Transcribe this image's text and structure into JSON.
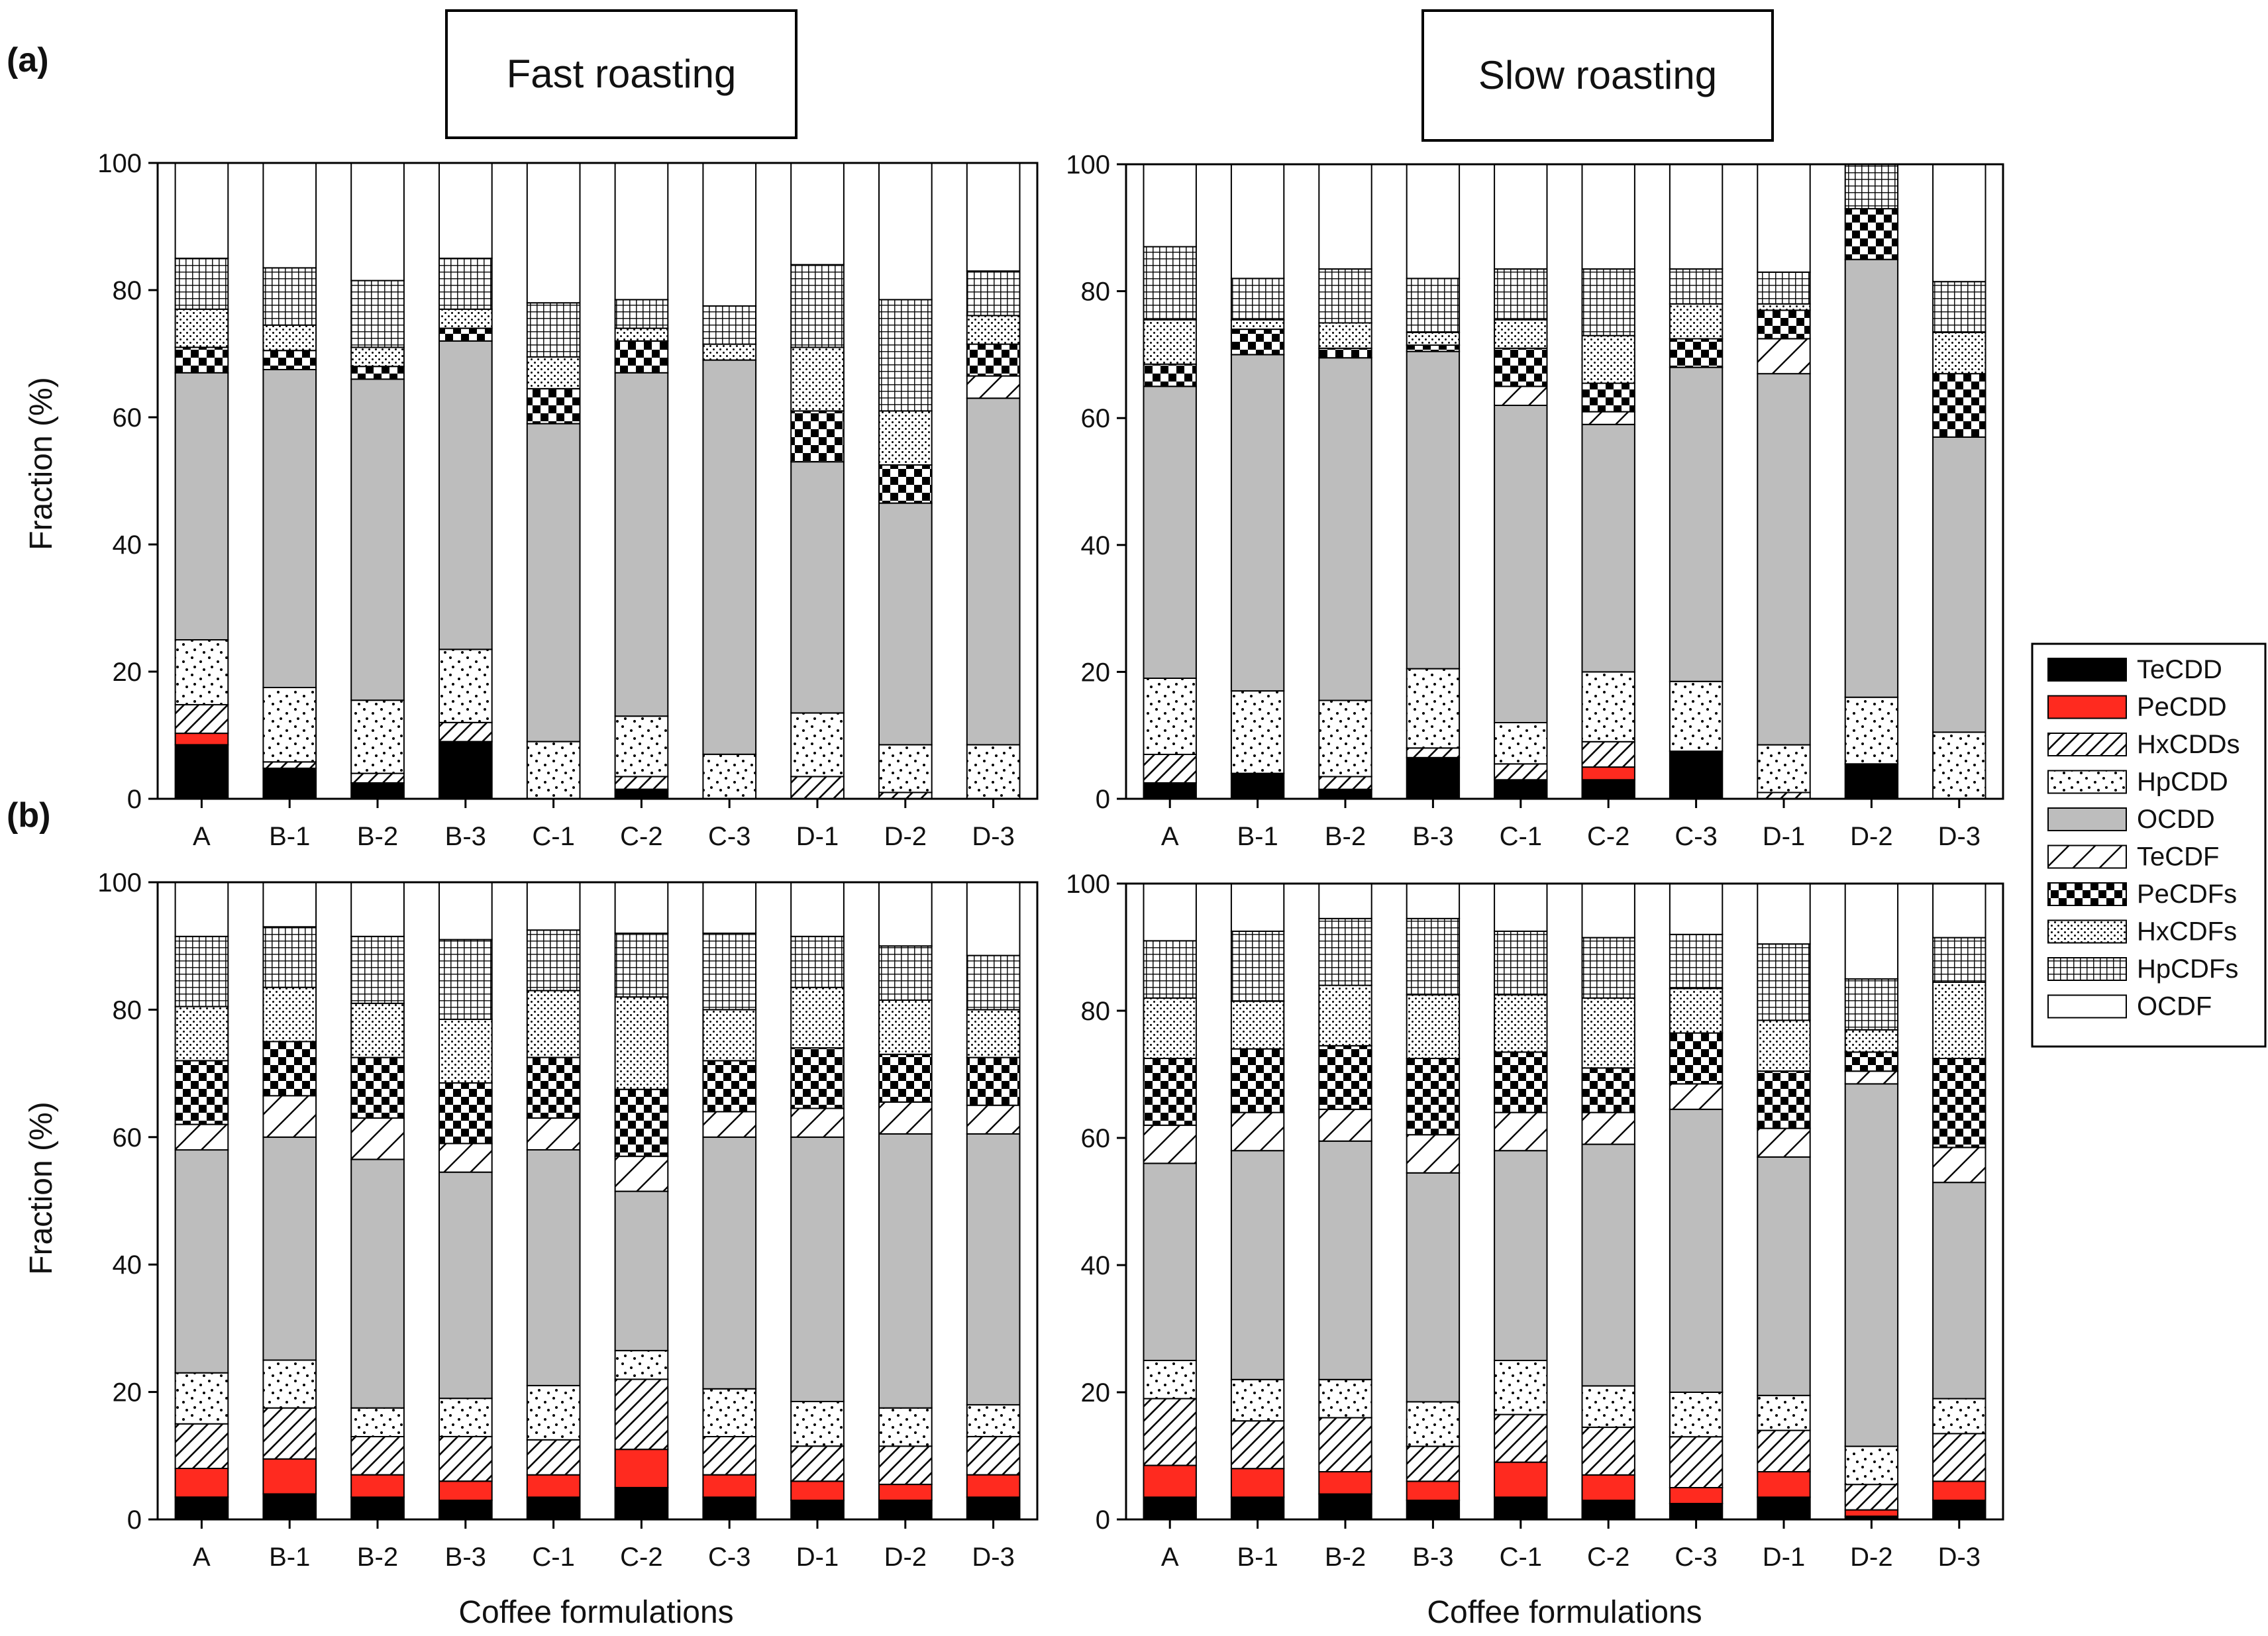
{
  "panel_labels": [
    "(a)",
    "(b)"
  ],
  "column_titles": [
    "Fast roasting",
    "Slow roasting"
  ],
  "ylabel": "Fraction (%)",
  "xlabel": "Coffee formulations",
  "y_ticks": [
    "0",
    "20",
    "40",
    "60",
    "80",
    "100"
  ],
  "legend": [
    {
      "name": "TeCDD",
      "fill": "solid-black"
    },
    {
      "name": "PeCDD",
      "fill": "solid-red"
    },
    {
      "name": "HxCDDs",
      "fill": "dense-diagonal"
    },
    {
      "name": "HpCDD",
      "fill": "sparse-dots"
    },
    {
      "name": "OCDD",
      "fill": "solid-gray"
    },
    {
      "name": "TeCDF",
      "fill": "sparse-diagonal"
    },
    {
      "name": "PeCDFs",
      "fill": "checker"
    },
    {
      "name": "HxCDFs",
      "fill": "fine-dots"
    },
    {
      "name": "HpCDFs",
      "fill": "grid"
    },
    {
      "name": "OCDF",
      "fill": "solid-white"
    }
  ],
  "colors": {
    "TeCDD": "#000000",
    "PeCDD": "#ff2a1f",
    "OCDD": "#bdbdbd",
    "OCDF": "#ffffff",
    "axis": "#000000"
  },
  "chart_data": [
    {
      "type": "bar",
      "stacked": true,
      "panel": "(a)",
      "title": "Fast roasting",
      "ylabel": "Fraction (%)",
      "ylim": [
        0,
        100
      ],
      "categories": [
        "A",
        "B-1",
        "B-2",
        "B-3",
        "C-1",
        "C-2",
        "C-3",
        "D-1",
        "D-2",
        "D-3"
      ],
      "series": [
        {
          "name": "TeCDD",
          "values": [
            8.5,
            4.8,
            2.5,
            9.0,
            0,
            1.5,
            0,
            0,
            0,
            0
          ]
        },
        {
          "name": "PeCDD",
          "values": [
            1.8,
            0,
            0,
            0,
            0,
            0,
            0,
            0,
            0,
            0
          ]
        },
        {
          "name": "HxCDDs",
          "values": [
            4.5,
            1.0,
            1.5,
            3.0,
            0,
            2.0,
            0,
            3.5,
            1.0,
            0
          ]
        },
        {
          "name": "HpCDD",
          "values": [
            10.2,
            11.7,
            11.5,
            11.5,
            9.0,
            9.5,
            7.0,
            10.0,
            7.5,
            8.5
          ]
        },
        {
          "name": "OCDD",
          "values": [
            42.0,
            50.0,
            50.5,
            48.5,
            50.0,
            54.0,
            62.0,
            39.5,
            38.0,
            54.5
          ]
        },
        {
          "name": "TeCDF",
          "values": [
            0,
            0,
            0,
            0,
            0,
            0,
            0,
            0,
            0,
            3.5
          ]
        },
        {
          "name": "PeCDFs",
          "values": [
            4.0,
            3.0,
            2.0,
            2.0,
            5.5,
            5.0,
            0,
            8.0,
            6.0,
            5.0
          ]
        },
        {
          "name": "HxCDFs",
          "values": [
            6.0,
            4.0,
            3.0,
            3.0,
            5.0,
            2.0,
            2.5,
            10.0,
            8.5,
            4.5
          ]
        },
        {
          "name": "HpCDFs",
          "values": [
            8.0,
            9.0,
            10.5,
            8.0,
            8.5,
            4.5,
            6.0,
            13.0,
            17.5,
            7.0
          ]
        },
        {
          "name": "OCDF",
          "values": [
            15.0,
            16.5,
            18.5,
            15.0,
            22.0,
            21.5,
            22.5,
            16.0,
            21.5,
            17.0
          ]
        }
      ]
    },
    {
      "type": "bar",
      "stacked": true,
      "panel": "(a)",
      "title": "Slow roasting",
      "ylabel": "Fraction (%)",
      "ylim": [
        0,
        100
      ],
      "categories": [
        "A",
        "B-1",
        "B-2",
        "B-3",
        "C-1",
        "C-2",
        "C-3",
        "D-1",
        "D-2",
        "D-3"
      ],
      "series": [
        {
          "name": "TeCDD",
          "values": [
            2.5,
            4.0,
            1.5,
            6.5,
            3.0,
            3.0,
            7.5,
            0,
            5.5,
            0
          ]
        },
        {
          "name": "PeCDD",
          "values": [
            0,
            0,
            0,
            0,
            0,
            2.0,
            0,
            0,
            0,
            0
          ]
        },
        {
          "name": "HxCDDs",
          "values": [
            4.5,
            0,
            2.0,
            1.5,
            2.5,
            4.0,
            0,
            1.0,
            0,
            0
          ]
        },
        {
          "name": "HpCDD",
          "values": [
            12.0,
            13.0,
            12.0,
            12.5,
            6.5,
            11.0,
            11.0,
            7.5,
            10.5,
            10.5
          ]
        },
        {
          "name": "OCDD",
          "values": [
            46.0,
            53.0,
            54.0,
            50.0,
            50.0,
            39.0,
            49.5,
            58.5,
            69.0,
            46.5
          ]
        },
        {
          "name": "TeCDF",
          "values": [
            0,
            0,
            0,
            0,
            3.0,
            2.0,
            0,
            5.5,
            0,
            0
          ]
        },
        {
          "name": "PeCDFs",
          "values": [
            3.5,
            4.0,
            1.5,
            1.0,
            6.0,
            4.5,
            4.5,
            4.5,
            8.0,
            10.0
          ]
        },
        {
          "name": "HxCDFs",
          "values": [
            7.0,
            1.5,
            4.0,
            2.0,
            4.5,
            7.5,
            5.5,
            1.0,
            0,
            6.5
          ]
        },
        {
          "name": "HpCDFs",
          "values": [
            11.5,
            6.5,
            8.5,
            8.5,
            8.0,
            10.5,
            5.5,
            5.0,
            7.0,
            8.0
          ]
        },
        {
          "name": "OCDF",
          "values": [
            13.0,
            18.0,
            16.5,
            18.0,
            16.5,
            16.5,
            16.5,
            17.0,
            0,
            18.5
          ]
        }
      ]
    },
    {
      "type": "bar",
      "stacked": true,
      "panel": "(b)",
      "xlabel": "Coffee formulations",
      "ylabel": "Fraction (%)",
      "ylim": [
        0,
        100
      ],
      "categories": [
        "A",
        "B-1",
        "B-2",
        "B-3",
        "C-1",
        "C-2",
        "C-3",
        "D-1",
        "D-2",
        "D-3"
      ],
      "series": [
        {
          "name": "TeCDD",
          "values": [
            3.5,
            4.0,
            3.5,
            3.0,
            3.5,
            5.0,
            3.5,
            3.0,
            3.0,
            3.5
          ]
        },
        {
          "name": "PeCDD",
          "values": [
            4.5,
            5.5,
            3.5,
            3.0,
            3.5,
            6.0,
            3.5,
            3.0,
            2.5,
            3.5
          ]
        },
        {
          "name": "HxCDDs",
          "values": [
            7.0,
            8.0,
            6.0,
            7.0,
            5.5,
            11.0,
            6.0,
            5.5,
            6.0,
            6.0
          ]
        },
        {
          "name": "HpCDD",
          "values": [
            8.0,
            7.5,
            4.5,
            6.0,
            8.5,
            4.5,
            7.5,
            7.0,
            6.0,
            5.0
          ]
        },
        {
          "name": "OCDD",
          "values": [
            35.0,
            35.0,
            39.0,
            35.5,
            37.0,
            25.0,
            39.5,
            41.5,
            43.0,
            42.5
          ]
        },
        {
          "name": "TeCDF",
          "values": [
            4.0,
            6.5,
            6.5,
            4.5,
            5.0,
            5.5,
            4.0,
            4.5,
            5.0,
            4.5
          ]
        },
        {
          "name": "PeCDFs",
          "values": [
            10.0,
            8.5,
            9.5,
            9.5,
            9.5,
            10.5,
            8.0,
            9.5,
            7.5,
            7.5
          ]
        },
        {
          "name": "HxCDFs",
          "values": [
            8.5,
            8.5,
            8.5,
            10.0,
            10.5,
            14.5,
            8.0,
            9.5,
            8.5,
            7.5
          ]
        },
        {
          "name": "HpCDFs",
          "values": [
            11.0,
            9.5,
            10.5,
            12.5,
            9.5,
            10.0,
            12.0,
            8.0,
            8.5,
            8.5
          ]
        },
        {
          "name": "OCDF",
          "values": [
            8.5,
            7.0,
            8.5,
            9.0,
            7.5,
            8.0,
            8.0,
            8.5,
            10.0,
            11.5
          ]
        }
      ]
    },
    {
      "type": "bar",
      "stacked": true,
      "panel": "(b)",
      "xlabel": "Coffee formulations",
      "ylabel": "Fraction (%)",
      "ylim": [
        0,
        100
      ],
      "categories": [
        "A",
        "B-1",
        "B-2",
        "B-3",
        "C-1",
        "C-2",
        "C-3",
        "D-1",
        "D-2",
        "D-3"
      ],
      "series": [
        {
          "name": "TeCDD",
          "values": [
            3.5,
            3.5,
            4.0,
            3.0,
            3.5,
            3.0,
            2.5,
            3.5,
            0.5,
            3.0
          ]
        },
        {
          "name": "PeCDD",
          "values": [
            5.0,
            4.5,
            3.5,
            3.0,
            5.5,
            4.0,
            2.5,
            4.0,
            1.0,
            3.0
          ]
        },
        {
          "name": "HxCDDs",
          "values": [
            10.5,
            7.5,
            8.5,
            5.5,
            7.5,
            7.5,
            8.0,
            6.5,
            4.0,
            7.5
          ]
        },
        {
          "name": "HpCDD",
          "values": [
            6.0,
            6.5,
            6.0,
            7.0,
            8.5,
            6.5,
            7.0,
            5.5,
            6.0,
            5.5
          ]
        },
        {
          "name": "OCDD",
          "values": [
            31.0,
            36.0,
            37.5,
            36.0,
            33.0,
            38.0,
            44.5,
            37.5,
            57.0,
            34.0
          ]
        },
        {
          "name": "TeCDF",
          "values": [
            6.0,
            6.0,
            5.0,
            6.0,
            6.0,
            5.0,
            4.0,
            4.5,
            2.0,
            5.5
          ]
        },
        {
          "name": "PeCDFs",
          "values": [
            10.5,
            10.0,
            10.0,
            12.0,
            9.5,
            7.0,
            8.0,
            9.0,
            3.0,
            14.0
          ]
        },
        {
          "name": "HxCDFs",
          "values": [
            9.5,
            7.5,
            9.5,
            10.0,
            9.0,
            11.0,
            7.0,
            8.0,
            3.5,
            12.0
          ]
        },
        {
          "name": "HpCDFs",
          "values": [
            9.0,
            11.0,
            10.5,
            12.0,
            10.0,
            9.5,
            8.5,
            12.0,
            8.0,
            7.0
          ]
        },
        {
          "name": "OCDF",
          "values": [
            9.0,
            7.5,
            5.5,
            5.5,
            7.5,
            8.5,
            8.0,
            9.5,
            15.0,
            8.5
          ]
        }
      ]
    }
  ]
}
